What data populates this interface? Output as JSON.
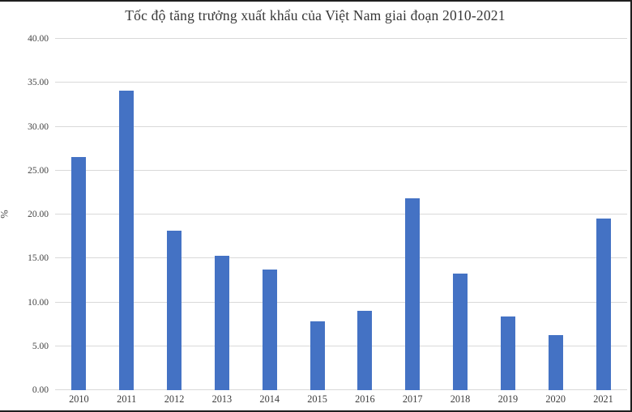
{
  "chart_data": {
    "type": "bar",
    "title": "Tốc độ tăng trưởng xuất khẩu của Việt Nam giai đoạn 2010-2021",
    "categories": [
      "2010",
      "2011",
      "2012",
      "2013",
      "2014",
      "2015",
      "2016",
      "2017",
      "2018",
      "2019",
      "2020",
      "2021"
    ],
    "values": [
      26.5,
      34.1,
      18.2,
      15.3,
      13.7,
      7.8,
      9.0,
      21.8,
      13.3,
      8.4,
      6.3,
      19.5
    ],
    "xlabel": "",
    "ylabel": "%",
    "ylim": [
      0,
      40
    ],
    "ytick_step": 5,
    "ytick_labels": [
      "0.00",
      "5.00",
      "10.00",
      "15.00",
      "20.00",
      "25.00",
      "30.00",
      "35.00",
      "40.00"
    ],
    "grid": true,
    "legend_position": "none",
    "bar_color": "#4472c4",
    "gridline_color": "#d9d9d9"
  }
}
